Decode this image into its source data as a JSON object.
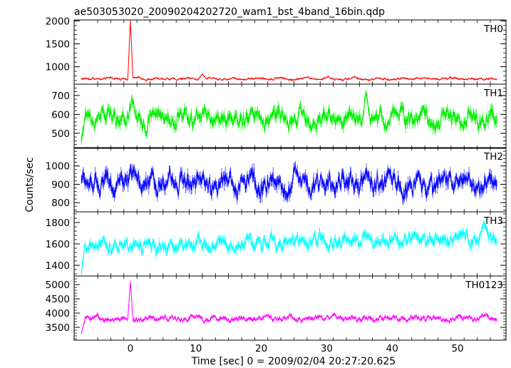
{
  "title": "ae503053020_20090204202720_wam1_bst_4band_16bin.qdp",
  "xlabel": "Time [sec] 0 = 2009/02/04 20:27:20.625",
  "ylabel": "Counts/sec",
  "chart_data": {
    "type": "line",
    "title": "ae503053020_20090204202720_wam1_bst_4band_16bin.qdp",
    "xlabel": "Time [sec] 0 = 2009/02/04 20:27:20.625",
    "ylabel": "Counts/sec",
    "xlim": [
      -8.6,
      57.4
    ],
    "xticks": [
      0,
      10,
      20,
      30,
      40,
      50
    ],
    "x_step_sec": 0.0625,
    "panels": [
      {
        "name": "TH0",
        "color": "#ff0000",
        "ylim": [
          620,
          2020
        ],
        "yticks": [
          1000,
          1500,
          2000
        ],
        "baseline": 740,
        "noise": 30,
        "drift": 0,
        "t_start": -7.5,
        "t_end": 56.0,
        "features": [
          {
            "t": 0.0,
            "peak": 2000,
            "width": 0.4
          },
          {
            "t": 11.0,
            "peak": 840,
            "width": 0.6
          }
        ]
      },
      {
        "name": "TH1",
        "color": "#00ee00",
        "ylim": [
          420,
          760
        ],
        "yticks": [
          500,
          600,
          700
        ],
        "baseline": 580,
        "noise": 55,
        "drift": 0,
        "t_start": -7.5,
        "t_end": 56.0,
        "features": [
          {
            "t": -7.5,
            "peak": 460,
            "width": 0.6
          },
          {
            "t": 36.0,
            "peak": 720,
            "width": 0.6
          }
        ]
      },
      {
        "name": "TH2",
        "color": "#0000ff",
        "ylim": [
          750,
          1100
        ],
        "yticks": [
          800,
          900,
          1000
        ],
        "baseline": 910,
        "noise": 65,
        "drift": 0,
        "t_start": -7.5,
        "t_end": 56.0,
        "features": []
      },
      {
        "name": "TH3",
        "color": "#00ffff",
        "ylim": [
          1300,
          1900
        ],
        "yticks": [
          1400,
          1600,
          1800
        ],
        "baseline": 1600,
        "noise": 75,
        "drift": 1.5,
        "t_start": -7.5,
        "t_end": 56.0,
        "features": [
          {
            "t": -7.5,
            "peak": 1330,
            "width": 0.6
          },
          {
            "t": 54.0,
            "peak": 1800,
            "width": 0.6
          }
        ]
      },
      {
        "name": "TH0123",
        "color": "#ff00ff",
        "ylim": [
          3050,
          5300
        ],
        "yticks": [
          3500,
          4000,
          4500,
          5000
        ],
        "baseline": 3820,
        "noise": 110,
        "drift": 0,
        "t_start": -7.5,
        "t_end": 56.0,
        "features": [
          {
            "t": -7.5,
            "peak": 3300,
            "width": 0.6
          },
          {
            "t": 0.0,
            "peak": 5100,
            "width": 0.4
          }
        ]
      }
    ]
  }
}
